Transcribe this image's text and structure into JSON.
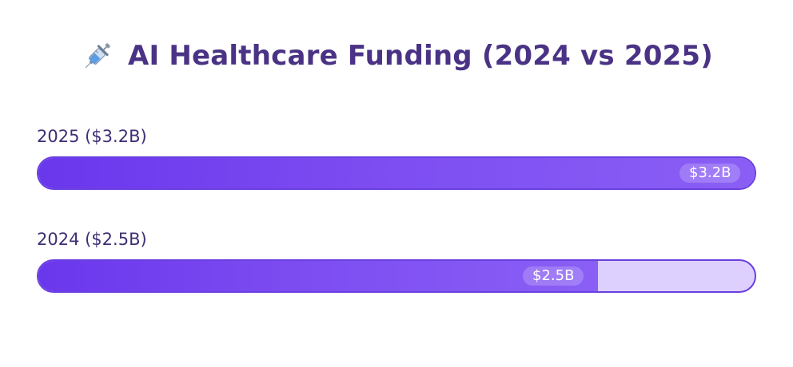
{
  "chart_data": {
    "type": "bar",
    "orientation": "horizontal",
    "title": "AI Healthcare Funding (2024 vs 2025)",
    "title_icon": "syringe-icon",
    "xlim": [
      0,
      3.2
    ],
    "unit": "B USD",
    "bars": [
      {
        "label": "2025 ($3.2B)",
        "value": 3.2,
        "value_label": "$3.2B"
      },
      {
        "label": "2024 ($2.5B)",
        "value": 2.5,
        "value_label": "$2.5B"
      }
    ],
    "colors": {
      "fill": "#7c4cf1",
      "track": "#ddd0ff",
      "border": "#6a3fe0",
      "title": "#4a3385"
    }
  }
}
